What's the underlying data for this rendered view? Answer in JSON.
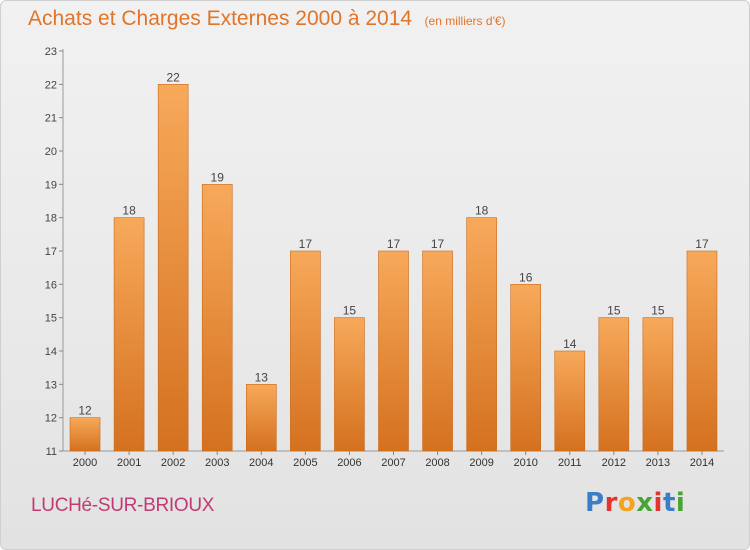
{
  "header": {
    "title": "Achats et Charges Externes 2000 à 2014",
    "subtitle": "(en milliers d'€)"
  },
  "footer": {
    "commune": "LUCHé-SUR-BRIOUX",
    "logo_letters": [
      {
        "ch": "P",
        "color": "#3a7dc9"
      },
      {
        "ch": "r",
        "color": "#e3342f"
      },
      {
        "ch": "o",
        "color": "#f4a321"
      },
      {
        "ch": "x",
        "color": "#46a535"
      },
      {
        "ch": "i",
        "color": "#e3342f"
      },
      {
        "ch": "t",
        "color": "#3a7dc9"
      },
      {
        "ch": "i",
        "color": "#46a535"
      }
    ]
  },
  "colors": {
    "bar_top": "#f7a95a",
    "bar_bottom": "#d4711f",
    "bar_stroke": "#c96a1c",
    "title": "#e0752a",
    "commune": "#c23a74"
  },
  "chart_data": {
    "type": "bar",
    "categories": [
      "2000",
      "2001",
      "2002",
      "2003",
      "2004",
      "2005",
      "2006",
      "2007",
      "2008",
      "2009",
      "2010",
      "2011",
      "2012",
      "2013",
      "2014"
    ],
    "values": [
      12,
      18,
      22,
      19,
      13,
      17,
      15,
      17,
      17,
      18,
      16,
      14,
      15,
      15,
      17
    ],
    "title": "Achats et Charges Externes 2000 à 2014",
    "xlabel": "",
    "ylabel": "",
    "ylim": [
      11,
      23
    ],
    "yticks": [
      11,
      12,
      13,
      14,
      15,
      16,
      17,
      18,
      19,
      20,
      21,
      22,
      23
    ],
    "grid": false,
    "data_labels": true
  }
}
